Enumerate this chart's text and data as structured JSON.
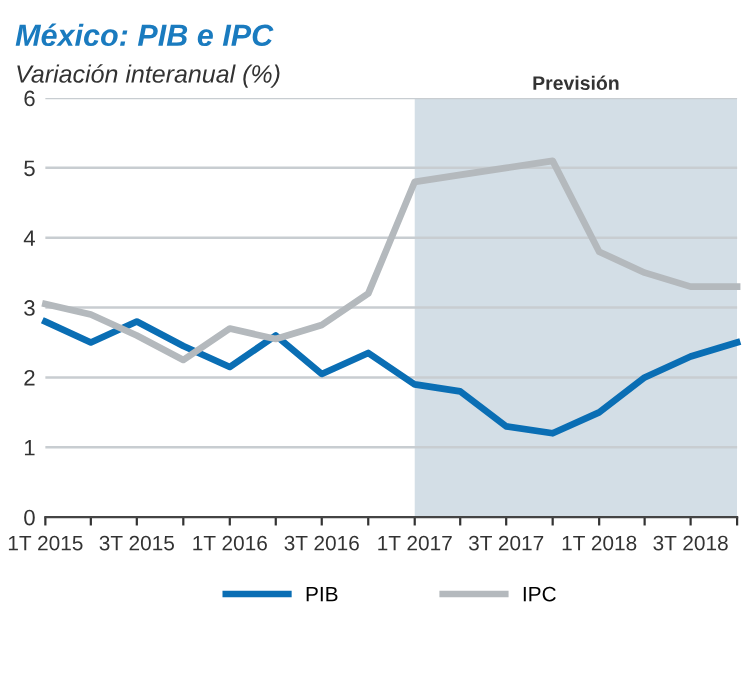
{
  "chart_data": {
    "type": "line",
    "title": "México: PIB e IPC",
    "subtitle": "Variación interanual (%)",
    "x": [
      "2015-01",
      "2015-04",
      "2015-07",
      "2015-10",
      "2016-01",
      "2016-04",
      "2016-07",
      "2016-10",
      "2017-01",
      "2017-04",
      "2017-07",
      "2017-10",
      "2018-01",
      "2018-04",
      "2018-07",
      "2018-10"
    ],
    "series": [
      {
        "name": "PIB",
        "color": "#0a6eb4",
        "values": [
          2.8,
          2.5,
          2.8,
          2.45,
          2.15,
          2.6,
          2.05,
          2.35,
          1.9,
          1.8,
          1.3,
          1.2,
          1.5,
          2.0,
          2.3,
          2.5
        ]
      },
      {
        "name": "IPC",
        "color": "#b4b9bd",
        "values": [
          3.05,
          2.9,
          2.6,
          2.25,
          2.7,
          2.55,
          2.75,
          3.2,
          4.8,
          4.9,
          5.0,
          5.1,
          3.8,
          3.5,
          3.3,
          3.3
        ]
      }
    ],
    "xlim": [
      "2015-01",
      "2018-10"
    ],
    "xticks": [
      {
        "value": "2015-01",
        "label": "1T 2015"
      },
      {
        "value": "2015-04",
        "label": null
      },
      {
        "value": "2015-07",
        "label": "3T 2015"
      },
      {
        "value": "2015-10",
        "label": null
      },
      {
        "value": "2016-01",
        "label": "1T 2016"
      },
      {
        "value": "2016-04",
        "label": null
      },
      {
        "value": "2016-07",
        "label": "3T 2016"
      },
      {
        "value": "2016-10",
        "label": null
      },
      {
        "value": "2017-01",
        "label": "1T 2017"
      },
      {
        "value": "2017-04",
        "label": null
      },
      {
        "value": "2017-07",
        "label": "3T 2017"
      },
      {
        "value": "2017-10",
        "label": null
      },
      {
        "value": "2018-01",
        "label": "1T 2018"
      },
      {
        "value": "2018-04",
        "label": null
      },
      {
        "value": "2018-07",
        "label": "3T 2018"
      },
      {
        "value": "2018-10",
        "label": null
      }
    ],
    "ylim": [
      0,
      6
    ],
    "yticks": [
      0,
      1,
      2,
      3,
      4,
      5,
      6
    ],
    "grid": "y",
    "legend": "bottom",
    "line_style": "solid",
    "marker": "none",
    "bands": [
      {
        "axis": "x",
        "from": "2017-01",
        "to": "2018-10",
        "label": "Previsión",
        "color": "#d3dee6"
      }
    ]
  }
}
